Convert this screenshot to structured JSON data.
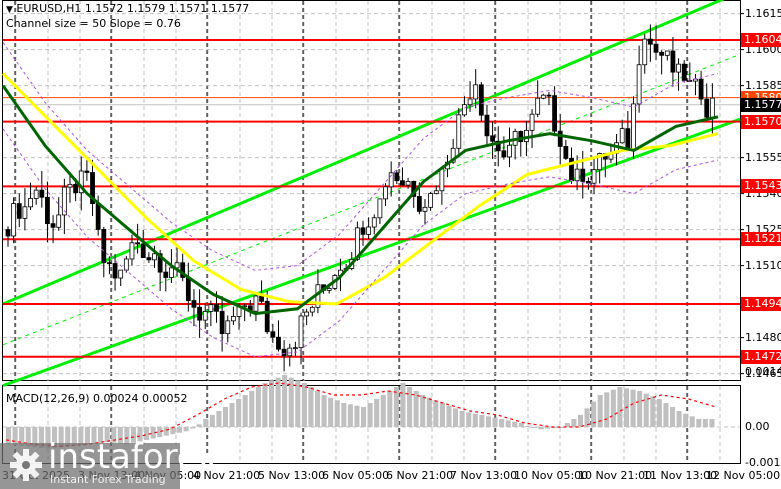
{
  "header": {
    "symbol_line": "EURUSD,H1  1.1572 1.1579 1.1571 1.1577",
    "channel_line": "Channel size = 50 Slope = 0.76"
  },
  "macd": {
    "label": "MACD(12,26,9) 0.00024 0.00052",
    "axis": [
      "0.00145",
      "0.00",
      "-0.00167"
    ]
  },
  "price_axis": [
    "1.1615",
    "1.1600",
    "1.1585",
    "1.1555",
    "1.1540",
    "1.1525",
    "1.1510",
    "1.1480",
    "1.1465"
  ],
  "level_tags": [
    {
      "value": "1.1604",
      "color": "#ff0000"
    },
    {
      "value": "1.1580",
      "color": "#ff4500"
    },
    {
      "value": "1.1577",
      "color": "#000000"
    },
    {
      "value": "1.1570",
      "color": "#ff0000"
    },
    {
      "value": "1.1543",
      "color": "#ff0000"
    },
    {
      "value": "1.1521",
      "color": "#ff0000"
    },
    {
      "value": "1.1494",
      "color": "#ff0000"
    },
    {
      "value": "1.1472",
      "color": "#ff0000"
    }
  ],
  "time_axis": [
    "31 Oct 2025",
    "3 Nov 13:00",
    "4 Nov 05:00",
    "4 Nov 21:00",
    "5 Nov 13:00",
    "6 Nov 05:00",
    "6 Nov 21:00",
    "7 Nov 13:00",
    "10 Nov 05:00",
    "10 Nov 21:00",
    "11 Nov 13:00",
    "12 Nov 05:00"
  ],
  "watermark": {
    "brand": "instaforex",
    "tagline": "Instant Forex Trading"
  },
  "colors": {
    "support_resistance": "#ff0000",
    "channel": "#00ee00",
    "ma_fast": "#006400",
    "ma_slow": "#ffff00",
    "envelope": "#b050e0",
    "macd_hist": "#c0c0c0",
    "macd_signal": "#ff0000",
    "bid_line": "#ff4500"
  },
  "chart_data": [
    {
      "type": "candlestick",
      "title": "EURUSD,H1",
      "ohlc_last": {
        "open": 1.1572,
        "high": 1.1579,
        "low": 1.1571,
        "close": 1.1577
      },
      "xlabel": "",
      "ylabel": "",
      "ylim": [
        1.1462,
        1.1622
      ],
      "x_ticks": [
        "31 Oct 2025",
        "3 Nov 13:00",
        "4 Nov 05:00",
        "4 Nov 21:00",
        "5 Nov 13:00",
        "6 Nov 05:00",
        "6 Nov 21:00",
        "7 Nov 13:00",
        "10 Nov 05:00",
        "10 Nov 21:00",
        "11 Nov 13:00",
        "12 Nov 05:00"
      ],
      "y_ticks": [
        1.1465,
        1.148,
        1.151,
        1.1525,
        1.154,
        1.1555,
        1.1585,
        1.16,
        1.1615
      ],
      "horizontal_levels": [
        1.1604,
        1.157,
        1.1543,
        1.1521,
        1.1494,
        1.1472
      ],
      "current_price": 1.1577,
      "ask_line": 1.158,
      "annotations": [
        "Channel size = 50 Slope = 0.76"
      ],
      "series": [
        {
          "name": "Close (approx)",
          "values": [
            1.1535,
            1.1542,
            1.1528,
            1.154,
            1.1545,
            1.1512,
            1.1505,
            1.152,
            1.1515,
            1.151,
            1.1498,
            1.149,
            1.1482,
            1.1488,
            1.1495,
            1.148,
            1.1478,
            1.149,
            1.15,
            1.1512,
            1.1522,
            1.1535,
            1.155,
            1.1545,
            1.1538,
            1.1548,
            1.157,
            1.1588,
            1.1562,
            1.1555,
            1.1566,
            1.1578,
            1.1565,
            1.1545,
            1.155,
            1.1556,
            1.1562,
            1.161,
            1.1598,
            1.1588,
            1.1582,
            1.1577
          ]
        },
        {
          "name": "MA fast (dark green)",
          "values": [
            1.1585,
            1.156,
            1.154,
            1.1525,
            1.151,
            1.1498,
            1.149,
            1.1492,
            1.1505,
            1.1525,
            1.1545,
            1.1558,
            1.1562,
            1.1565,
            1.1562,
            1.1558,
            1.1568,
            1.1572
          ]
        },
        {
          "name": "MA slow (yellow)",
          "values": [
            1.159,
            1.157,
            1.155,
            1.153,
            1.1512,
            1.15,
            1.1495,
            1.1494,
            1.1505,
            1.152,
            1.1535,
            1.1548,
            1.1553,
            1.1558,
            1.156,
            1.1565
          ]
        },
        {
          "name": "Channel upper",
          "values": [
            1.1495,
            1.1625
          ]
        },
        {
          "name": "Channel lower",
          "values": [
            1.1462,
            1.157
          ]
        }
      ]
    },
    {
      "type": "bar",
      "title": "MACD(12,26,9)",
      "values_label": {
        "macd": 0.00024,
        "signal": 0.00052
      },
      "ylim": [
        -0.00167,
        0.00145
      ],
      "y_ticks": [
        0.00145,
        0.0,
        -0.00167
      ],
      "series": [
        {
          "name": "MACD histogram",
          "values": [
            -0.0008,
            -0.0009,
            -0.001,
            -0.0009,
            -0.0008,
            -0.0007,
            -0.0008,
            -0.0006,
            -0.0004,
            -0.0002,
            0.0002,
            0.0005,
            0.0008,
            0.0011,
            0.0013,
            0.0011,
            0.0008,
            0.0006,
            0.0005,
            0.0008,
            0.0011,
            0.0008,
            0.0006,
            0.0004,
            0.0003,
            0.0002,
            0.0001,
            -0.0001,
            0.0,
            0.0003,
            0.0008,
            0.001,
            0.0009,
            0.0007,
            0.0004,
            0.0002
          ]
        },
        {
          "name": "Signal",
          "values": [
            -0.0006,
            -0.0008,
            -0.0009,
            -0.0008,
            -0.0006,
            -0.0004,
            -0.0001,
            0.0003,
            0.0007,
            0.001,
            0.0011,
            0.001,
            0.0008,
            0.0008,
            0.0009,
            0.0008,
            0.0006,
            0.0004,
            0.0003,
            0.0001,
            0.0,
            0.0,
            0.0002,
            0.0006,
            0.0008,
            0.0007,
            0.0005
          ]
        }
      ]
    }
  ]
}
